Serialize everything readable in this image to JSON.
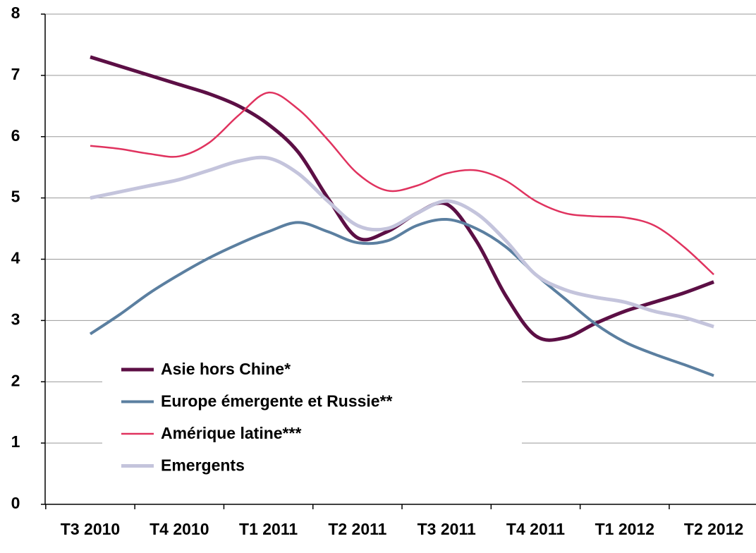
{
  "chart_data": {
    "type": "line",
    "categories": [
      "T3 2010",
      null,
      null,
      "T4 2010",
      null,
      null,
      "T1 2011",
      null,
      null,
      "T2 2011",
      null,
      null,
      "T3 2011",
      null,
      null,
      "T4 2011",
      null,
      null,
      "T1 2012",
      null,
      null,
      "T2 2012"
    ],
    "series": [
      {
        "name": "Asie hors Chine*",
        "color": "#5c0f45",
        "values": [
          7.3,
          7.15,
          7.0,
          6.85,
          6.7,
          6.5,
          6.2,
          5.75,
          5.0,
          4.35,
          4.45,
          4.75,
          4.9,
          4.3,
          3.4,
          2.75,
          2.72,
          2.95,
          3.15,
          3.3,
          3.45,
          3.63
        ]
      },
      {
        "name": "Europe émergente et Russie**",
        "color": "#5b7fa0",
        "values": [
          2.78,
          3.1,
          3.45,
          3.75,
          4.02,
          4.25,
          4.45,
          4.6,
          4.45,
          4.27,
          4.3,
          4.55,
          4.65,
          4.5,
          4.2,
          3.75,
          3.35,
          2.95,
          2.65,
          2.45,
          2.28,
          2.1
        ]
      },
      {
        "name": "Amérique latine***",
        "color": "#e0335f",
        "values": [
          5.85,
          5.8,
          5.72,
          5.68,
          5.9,
          6.35,
          6.72,
          6.45,
          5.95,
          5.4,
          5.12,
          5.2,
          5.4,
          5.45,
          5.28,
          4.95,
          4.75,
          4.7,
          4.68,
          4.55,
          4.2,
          3.75
        ]
      },
      {
        "name": "Emergents",
        "color": "#c4c4dc",
        "values": [
          5.0,
          5.1,
          5.2,
          5.3,
          5.45,
          5.6,
          5.65,
          5.4,
          4.95,
          4.55,
          4.5,
          4.75,
          4.95,
          4.75,
          4.3,
          3.75,
          3.5,
          3.38,
          3.3,
          3.15,
          3.05,
          2.9
        ]
      }
    ],
    "ylim": [
      0,
      8
    ],
    "yticks": [
      0,
      1,
      2,
      3,
      4,
      5,
      6,
      7,
      8
    ],
    "grid": true
  }
}
